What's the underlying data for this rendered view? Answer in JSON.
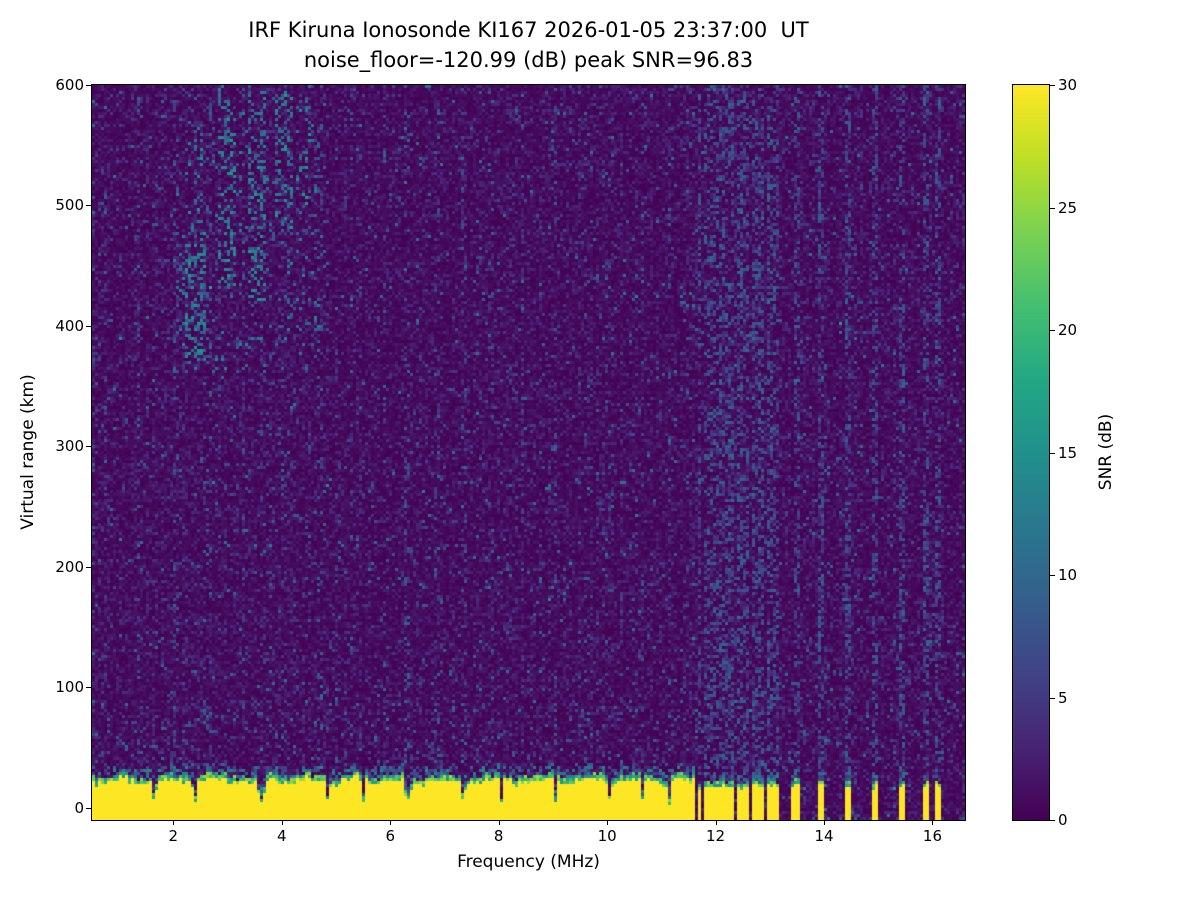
{
  "chart_data": {
    "type": "heatmap",
    "title": "IRF Kiruna Ionosonde KI167 2026-01-05 23:37:00  UT",
    "subtitle": "noise_floor=-120.99 (dB) peak SNR=96.83",
    "station": "KI167",
    "timestamp_ut": "2026-01-05 23:37:00",
    "noise_floor_db": -120.99,
    "peak_snr_db": 96.83,
    "xlabel": "Frequency (MHz)",
    "ylabel": "Virtual range (km)",
    "colorbar_label": "SNR (dB)",
    "colormap": "viridis",
    "grid": false,
    "colorbar_position": "right",
    "x_range": [
      0.5,
      16.6
    ],
    "y_range": [
      -10,
      600
    ],
    "x_ticks": [
      2,
      4,
      6,
      8,
      10,
      12,
      14,
      16
    ],
    "y_ticks": [
      0,
      100,
      200,
      300,
      400,
      500,
      600
    ],
    "colorbar_range": [
      0,
      30
    ],
    "colorbar_ticks": [
      0,
      5,
      10,
      15,
      20,
      25,
      30
    ],
    "features": {
      "background_noise_mean_db": 1.4,
      "speckle_teal_fraction": 0.02,
      "ground_band": {
        "top_km": 26,
        "bottom_km": -10,
        "snr_db": 30,
        "f_end_continuous_mhz": 11.62,
        "notches_mhz": [
          [
            1.65,
            0.05
          ],
          [
            2.4,
            0.05
          ],
          [
            3.62,
            0.08
          ],
          [
            4.85,
            0.05
          ],
          [
            5.5,
            0.04
          ],
          [
            6.32,
            0.08
          ],
          [
            7.35,
            0.05
          ],
          [
            8.05,
            0.05
          ],
          [
            9.05,
            0.05
          ],
          [
            10.05,
            0.05
          ],
          [
            10.65,
            0.05
          ],
          [
            11.15,
            0.05
          ]
        ],
        "stripes_mhz": [
          [
            11.7,
            0.05
          ],
          [
            11.82,
            0.05
          ],
          [
            11.94,
            0.05
          ],
          [
            12.06,
            0.05
          ],
          [
            12.18,
            0.05
          ],
          [
            12.3,
            0.05
          ],
          [
            12.44,
            0.07
          ],
          [
            12.58,
            0.05
          ],
          [
            12.72,
            0.06
          ],
          [
            12.86,
            0.05
          ],
          [
            13.0,
            0.05
          ],
          [
            13.12,
            0.05
          ],
          [
            13.48,
            0.07
          ],
          [
            13.95,
            0.06
          ],
          [
            14.45,
            0.06
          ],
          [
            14.95,
            0.07
          ],
          [
            15.45,
            0.07
          ],
          [
            15.9,
            0.05
          ],
          [
            16.12,
            0.05
          ]
        ]
      },
      "echo_patches": [
        {
          "f_mhz": [
            2.2,
            2.6
          ],
          "range_km": [
            370,
            480
          ],
          "density": 0.3,
          "snr_db": [
            8,
            16
          ]
        },
        {
          "f_mhz": [
            2.25,
            2.55
          ],
          "range_km": [
            480,
            560
          ],
          "density": 0.12,
          "snr_db": [
            8,
            16
          ]
        },
        {
          "f_mhz": [
            2.8,
            3.15
          ],
          "range_km": [
            430,
            595
          ],
          "density": 0.3,
          "snr_db": [
            8,
            16
          ]
        },
        {
          "f_mhz": [
            3.35,
            3.7
          ],
          "range_km": [
            420,
            595
          ],
          "density": 0.25,
          "snr_db": [
            8,
            16
          ]
        },
        {
          "f_mhz": [
            3.9,
            4.2
          ],
          "range_km": [
            480,
            595
          ],
          "density": 0.28,
          "snr_db": [
            8,
            16
          ]
        },
        {
          "f_mhz": [
            4.25,
            4.55
          ],
          "range_km": [
            500,
            585
          ],
          "density": 0.16,
          "snr_db": [
            8,
            16
          ]
        },
        {
          "f_mhz": [
            2.0,
            4.7
          ],
          "range_km": [
            360,
            600
          ],
          "density": 0.05,
          "snr_db": [
            7,
            14
          ]
        }
      ],
      "rfi_columns_strong_mhz": [
        11.7,
        11.82,
        11.94,
        12.06,
        12.18,
        12.3,
        12.44,
        12.58,
        12.72,
        12.86,
        13.0,
        13.12,
        13.48,
        13.95,
        14.45,
        14.95,
        15.45,
        15.9,
        16.12
      ],
      "rfi_columns_weak_mhz": [
        1.35,
        2.05,
        2.65,
        3.3,
        4.0,
        4.7,
        5.3,
        5.9,
        6.3,
        6.9,
        7.35,
        7.9,
        8.45,
        9.05,
        9.6,
        10.1,
        10.65,
        11.15
      ]
    },
    "colors": {
      "viridis_min": "#440154",
      "viridis_max": "#fde725",
      "background": "#ffffff",
      "axis": "#000000"
    }
  }
}
